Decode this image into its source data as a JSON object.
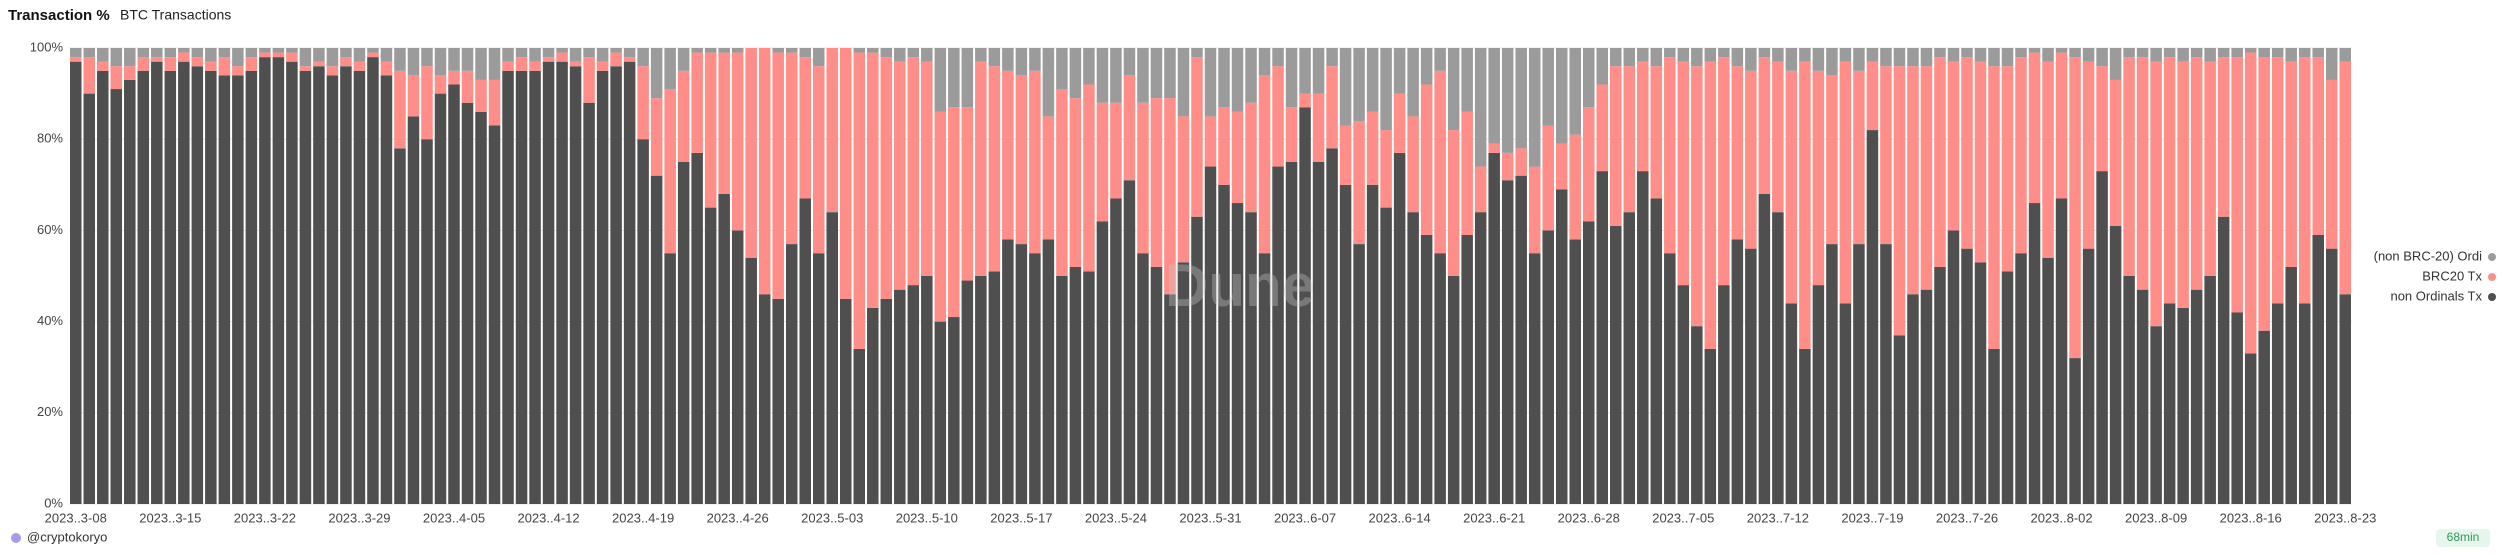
{
  "chart_data": {
    "type": "stacked-bar",
    "title": "Transaction %",
    "subtitle": "BTC Transactions",
    "categories": [
      "2023..3-08",
      null,
      null,
      null,
      null,
      null,
      null,
      "2023..3-15",
      null,
      null,
      null,
      null,
      null,
      null,
      "2023..3-22",
      null,
      null,
      null,
      null,
      null,
      null,
      "2023..3-29",
      null,
      null,
      null,
      null,
      null,
      null,
      "2023..4-05",
      null,
      null,
      null,
      null,
      null,
      null,
      "2023..4-12",
      null,
      null,
      null,
      null,
      null,
      null,
      "2023..4-19",
      null,
      null,
      null,
      null,
      null,
      null,
      "2023..4-26",
      null,
      null,
      null,
      null,
      null,
      null,
      "2023..5-03",
      null,
      null,
      null,
      null,
      null,
      null,
      "2023..5-10",
      null,
      null,
      null,
      null,
      null,
      null,
      "2023..5-17",
      null,
      null,
      null,
      null,
      null,
      null,
      "2023..5-24",
      null,
      null,
      null,
      null,
      null,
      null,
      "2023..5-31",
      null,
      null,
      null,
      null,
      null,
      null,
      "2023..6-07",
      null,
      null,
      null,
      null,
      null,
      null,
      "2023..6-14",
      null,
      null,
      null,
      null,
      null,
      null,
      "2023..6-21",
      null,
      null,
      null,
      null,
      null,
      null,
      "2023..6-28",
      null,
      null,
      null,
      null,
      null,
      null,
      "2023..7-05",
      null,
      null,
      null,
      null,
      null,
      null,
      "2023..7-12",
      null,
      null,
      null,
      null,
      null,
      null,
      "2023..7-19",
      null,
      null,
      null,
      null,
      null,
      null,
      "2023..7-26",
      null,
      null,
      null,
      null,
      null,
      null,
      "2023..8-02",
      null,
      null,
      null,
      null,
      null,
      null,
      "2023..8-09",
      null,
      null,
      null,
      null,
      null,
      null,
      "2023..8-16",
      null,
      null,
      null,
      null,
      null,
      null,
      "2023..8-23"
    ],
    "series": [
      {
        "name": "(non BRC-20) Ordi",
        "color": "#9b9b9b",
        "values": [
          2,
          2,
          3,
          4,
          4,
          2,
          2,
          2,
          1,
          2,
          3,
          2,
          4,
          2,
          1,
          1,
          1,
          4,
          3,
          4,
          2,
          3,
          1,
          3,
          5,
          6,
          4,
          6,
          5,
          5,
          7,
          7,
          3,
          2,
          3,
          2,
          1,
          3,
          2,
          3,
          1,
          2,
          4,
          11,
          9,
          5,
          1,
          1,
          1,
          1,
          0,
          0,
          1,
          1,
          2,
          4,
          0,
          0,
          1,
          1,
          2,
          3,
          2,
          3,
          14,
          13,
          13,
          3,
          4,
          5,
          6,
          5,
          15,
          9,
          11,
          8,
          12,
          12,
          6,
          12,
          11,
          11,
          15,
          2,
          15,
          13,
          14,
          12,
          6,
          4,
          13,
          10,
          10,
          4,
          17,
          16,
          14,
          18,
          10,
          15,
          8,
          5,
          18,
          14,
          26,
          21,
          23,
          22,
          26,
          17,
          21,
          19,
          13,
          8,
          4,
          4,
          3,
          4,
          2,
          3,
          4,
          3,
          2,
          4,
          5,
          2,
          3,
          5,
          3,
          5,
          6,
          3,
          5,
          3,
          4,
          4,
          4,
          4,
          2,
          3,
          2,
          3,
          4,
          4,
          2,
          1,
          3,
          1,
          2,
          3,
          4,
          7,
          2,
          2,
          3,
          2,
          3,
          2,
          3,
          2,
          2,
          1,
          2,
          2,
          3,
          2,
          2,
          7,
          3
        ]
      },
      {
        "name": "BRC20 Tx",
        "color": "#ff8d88",
        "values": [
          1,
          8,
          2,
          5,
          3,
          3,
          1,
          3,
          2,
          2,
          2,
          4,
          2,
          3,
          1,
          1,
          2,
          1,
          1,
          2,
          2,
          2,
          1,
          3,
          17,
          9,
          16,
          4,
          3,
          7,
          7,
          10,
          2,
          3,
          2,
          1,
          2,
          1,
          10,
          2,
          3,
          1,
          16,
          17,
          36,
          20,
          22,
          34,
          31,
          39,
          46,
          54,
          54,
          42,
          31,
          41,
          36,
          55,
          65,
          56,
          53,
          50,
          50,
          47,
          46,
          46,
          38,
          47,
          45,
          37,
          37,
          40,
          27,
          41,
          37,
          41,
          26,
          21,
          23,
          33,
          37,
          43,
          32,
          35,
          11,
          17,
          20,
          24,
          39,
          22,
          12,
          3,
          15,
          18,
          13,
          27,
          16,
          17,
          13,
          21,
          33,
          40,
          32,
          27,
          10,
          2,
          6,
          6,
          19,
          23,
          10,
          23,
          25,
          19,
          35,
          32,
          24,
          29,
          43,
          49,
          57,
          63,
          50,
          38,
          39,
          30,
          33,
          51,
          63,
          47,
          37,
          53,
          38,
          15,
          39,
          59,
          50,
          49,
          46,
          37,
          42,
          44,
          62,
          45,
          43,
          33,
          43,
          32,
          66,
          41,
          23,
          32,
          48,
          51,
          58,
          54,
          54,
          51,
          47,
          35,
          56,
          66,
          60,
          54,
          45,
          54,
          39,
          37,
          51
        ]
      },
      {
        "name": "non Ordinals Tx",
        "color": "#4f4f4f",
        "values": [
          97,
          90,
          95,
          91,
          93,
          95,
          97,
          95,
          97,
          96,
          95,
          94,
          94,
          95,
          98,
          98,
          97,
          95,
          96,
          94,
          96,
          95,
          98,
          94,
          78,
          85,
          80,
          90,
          92,
          88,
          86,
          83,
          95,
          95,
          95,
          97,
          97,
          96,
          88,
          95,
          96,
          97,
          80,
          72,
          55,
          75,
          77,
          65,
          68,
          60,
          54,
          46,
          45,
          57,
          67,
          55,
          64,
          45,
          34,
          43,
          45,
          47,
          48,
          50,
          40,
          41,
          49,
          50,
          51,
          58,
          57,
          55,
          58,
          50,
          52,
          51,
          62,
          67,
          71,
          55,
          52,
          46,
          53,
          63,
          74,
          70,
          66,
          64,
          55,
          74,
          75,
          87,
          75,
          78,
          70,
          57,
          70,
          65,
          77,
          64,
          59,
          55,
          50,
          59,
          64,
          77,
          71,
          72,
          55,
          60,
          69,
          58,
          62,
          73,
          61,
          64,
          73,
          67,
          55,
          48,
          39,
          34,
          48,
          58,
          56,
          68,
          64,
          44,
          34,
          48,
          57,
          44,
          57,
          82,
          57,
          37,
          46,
          47,
          52,
          60,
          56,
          53,
          34,
          51,
          55,
          66,
          54,
          67,
          32,
          56,
          73,
          61,
          50,
          47,
          39,
          44,
          43,
          47,
          50,
          63,
          42,
          33,
          38,
          44,
          52,
          44,
          59,
          56,
          46
        ]
      }
    ],
    "ylim": [
      0,
      100
    ],
    "yticks": [
      {
        "value": 0,
        "label": "0%"
      },
      {
        "value": 20,
        "label": "20%"
      },
      {
        "value": 40,
        "label": "40%"
      },
      {
        "value": 60,
        "label": "60%"
      },
      {
        "value": 80,
        "label": "80%"
      },
      {
        "value": 100,
        "label": "100%"
      }
    ],
    "grid": true,
    "legend": "right"
  },
  "watermark": "Dune",
  "footer": {
    "author": "@cryptokoryo",
    "badge": "68min"
  }
}
